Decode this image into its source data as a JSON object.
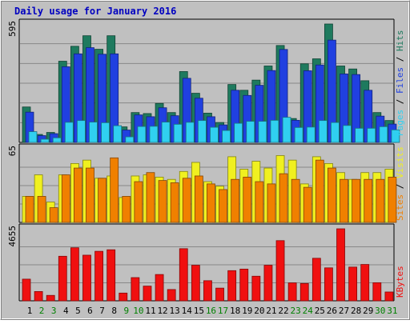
{
  "chart_data": {
    "type": "bar",
    "title": "Daily usage for January 2016",
    "categories": [
      "1",
      "2",
      "3",
      "4",
      "5",
      "6",
      "7",
      "8",
      "9",
      "10",
      "11",
      "12",
      "13",
      "14",
      "15",
      "16",
      "17",
      "18",
      "19",
      "20",
      "21",
      "22",
      "23",
      "24",
      "25",
      "26",
      "27",
      "28",
      "29",
      "30",
      "31"
    ],
    "weekend_days": [
      "2",
      "3",
      "9",
      "10",
      "16",
      "17",
      "23",
      "24",
      "30",
      "31"
    ],
    "panels": [
      {
        "id": "hits",
        "axis_max_label": "595",
        "ylim": [
          0,
          595
        ],
        "series": [
          {
            "name": "Hits",
            "color": "#1e7a5e",
            "values": [
              178,
              40,
              50,
              408,
              483,
              536,
              468,
              536,
              78,
              150,
              145,
              196,
              150,
              356,
              247,
              147,
              100,
              291,
              262,
              313,
              384,
              487,
              120,
              395,
              420,
              595,
              384,
              369,
              310,
              150,
              110
            ]
          },
          {
            "name": "Files",
            "color": "#2040e0",
            "values": [
              152,
              34,
              44,
              380,
              445,
              476,
              443,
              445,
              62,
              138,
              129,
              174,
              134,
              322,
              222,
              129,
              88,
              262,
              236,
              287,
              361,
              467,
              111,
              360,
              389,
              514,
              344,
              341,
              262,
              132,
              92
            ]
          },
          {
            "name": "Pages",
            "color": "#30d0f0",
            "values": [
              54,
              16,
              23,
              101,
              110,
              102,
              99,
              84,
              28,
              80,
              81,
              102,
              91,
              101,
              110,
              76,
              60,
              96,
              106,
              106,
              111,
              126,
              75,
              77,
              110,
              100,
              85,
              71,
              71,
              79,
              63
            ]
          }
        ]
      },
      {
        "id": "visits",
        "axis_max_label": "65",
        "ylim": [
          0,
          65
        ],
        "series": [
          {
            "name": "Visits",
            "color": "#f0f020",
            "values": [
              23,
              42,
              18,
              42,
              52,
              55,
              39,
              41,
              22,
              41,
              42,
              40,
              38,
              45,
              53,
              36,
              32,
              58,
              47,
              54,
              48,
              59,
              55,
              34,
              58,
              52,
              44,
              38,
              44,
              44,
              47
            ]
          },
          {
            "name": "Sites",
            "color": "#f08000",
            "values": [
              23,
              23,
              13,
              42,
              48,
              48,
              39,
              57,
              23,
              36,
              44,
              37,
              35,
              39,
              41,
              34,
              29,
              38,
              40,
              36,
              34,
              43,
              38,
              31,
              55,
              48,
              38,
              38,
              38,
              38,
              40
            ]
          }
        ]
      },
      {
        "id": "kbytes",
        "axis_max_label": "4655",
        "ylim": [
          0,
          4655
        ],
        "series": [
          {
            "name": "KBytes",
            "color": "#f01010",
            "values": [
              1400,
              600,
              350,
              2880,
              3430,
              2950,
              3200,
              3300,
              500,
              1500,
              950,
              1700,
              730,
              3370,
              2300,
              1300,
              820,
              1950,
              2050,
              1590,
              2300,
              3890,
              1160,
              1120,
              2750,
              2130,
              4655,
              2180,
              2350,
              1170,
              570
            ]
          }
        ]
      }
    ],
    "legend_labels": {
      "top": [
        "Pages",
        "Files",
        "Hits"
      ],
      "middle": [
        "Sites",
        "Visits"
      ],
      "bottom": [
        "KBytes"
      ]
    },
    "colors": {
      "background": "#c0c0c0",
      "title": "#0000c0",
      "weekday_label": "#000000",
      "weekend_label": "#008000",
      "separator": "#000000"
    }
  }
}
